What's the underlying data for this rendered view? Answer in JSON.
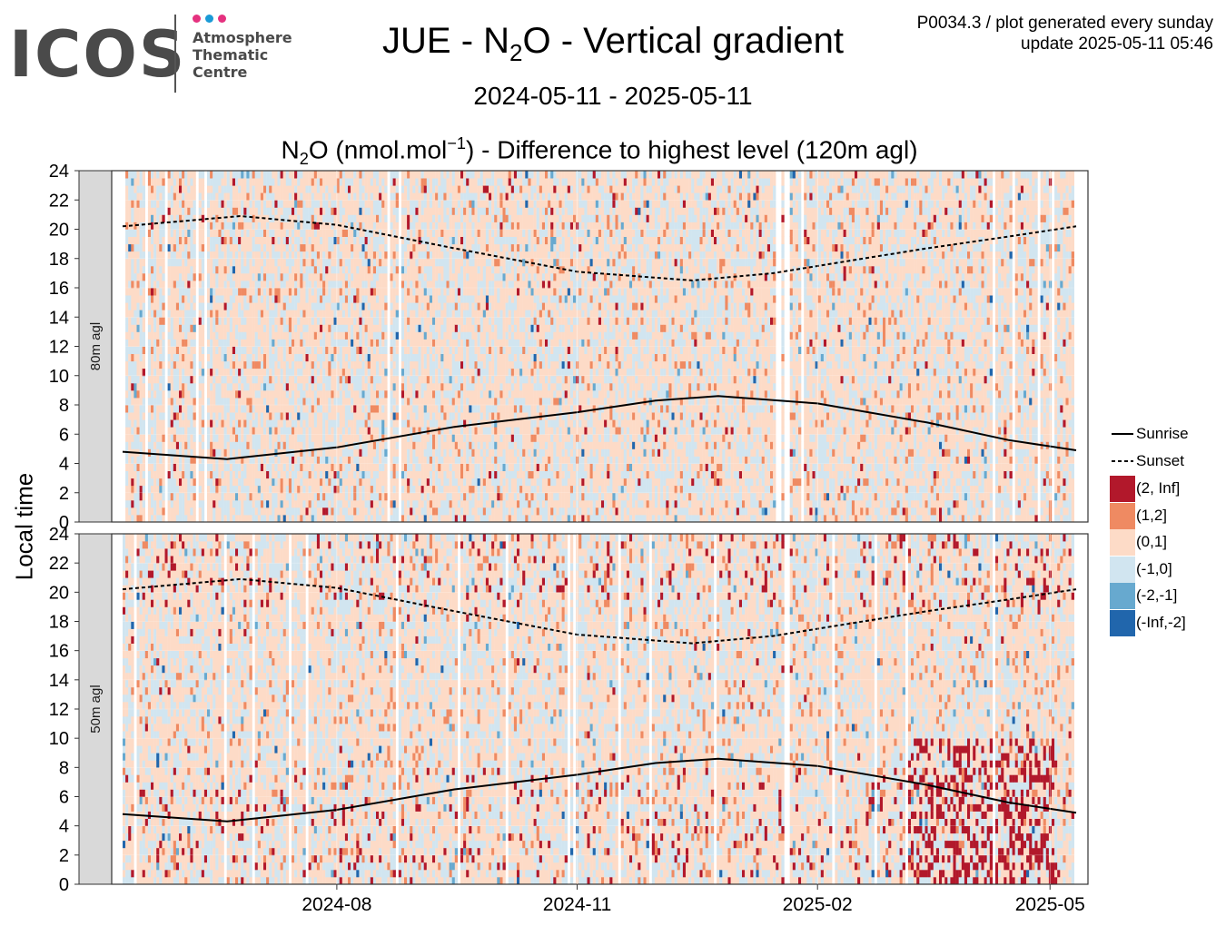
{
  "logo": {
    "name": "ICOS",
    "subtitle_lines": [
      "Atmosphere",
      "Thematic",
      "Centre"
    ],
    "dot_colors": [
      "#e5317f",
      "#1a9ad6",
      "#e5317f"
    ]
  },
  "header": {
    "title_pre": "JUE - N",
    "title_sub": "2",
    "title_post": "O - Vertical gradient",
    "date_range": "2024-05-11 - 2025-05-11",
    "subtitle_pre": "N",
    "subtitle_sub": "2",
    "subtitle_mid": "O (nmol.mol",
    "subtitle_sup": "−1",
    "subtitle_post": ") - Difference to highest level (120m agl)",
    "info_line1": "P0034.3 / plot generated every sunday",
    "info_line2": "update  2025-05-11 05:46"
  },
  "chart_data": {
    "type": "heatmap",
    "x_axis": {
      "ticks": [
        "2024-08",
        "2024-11",
        "2025-02",
        "2025-05"
      ],
      "range": [
        "2024-05-11",
        "2025-05-11"
      ]
    },
    "y_axis": {
      "label": "Local time",
      "ticks": [
        0,
        2,
        4,
        6,
        8,
        10,
        12,
        14,
        16,
        18,
        20,
        22,
        24
      ],
      "range": [
        0,
        24
      ]
    },
    "panels": [
      {
        "label": "80m agl",
        "sunrise": [
          {
            "date": "2024-05-11",
            "hour": 4.8
          },
          {
            "date": "2024-06-20",
            "hour": 4.3
          },
          {
            "date": "2024-08-01",
            "hour": 5.1
          },
          {
            "date": "2024-09-15",
            "hour": 6.5
          },
          {
            "date": "2024-11-01",
            "hour": 7.5
          },
          {
            "date": "2024-12-01",
            "hour": 8.3
          },
          {
            "date": "2024-12-25",
            "hour": 8.6
          },
          {
            "date": "2025-02-01",
            "hour": 8.1
          },
          {
            "date": "2025-03-15",
            "hour": 6.8
          },
          {
            "date": "2025-04-15",
            "hour": 5.6
          },
          {
            "date": "2025-05-11",
            "hour": 4.9
          }
        ],
        "sunset": [
          {
            "date": "2024-05-11",
            "hour": 20.2
          },
          {
            "date": "2024-06-25",
            "hour": 20.9
          },
          {
            "date": "2024-08-01",
            "hour": 20.3
          },
          {
            "date": "2024-09-15",
            "hour": 18.7
          },
          {
            "date": "2024-11-01",
            "hour": 17.1
          },
          {
            "date": "2024-12-15",
            "hour": 16.5
          },
          {
            "date": "2025-01-15",
            "hour": 17.0
          },
          {
            "date": "2025-02-15",
            "hour": 17.9
          },
          {
            "date": "2025-03-15",
            "hour": 18.7
          },
          {
            "date": "2025-04-15",
            "hour": 19.5
          },
          {
            "date": "2025-05-11",
            "hour": 20.2
          }
        ]
      },
      {
        "label": "50m agl",
        "sunrise": [
          {
            "date": "2024-05-11",
            "hour": 4.8
          },
          {
            "date": "2024-06-20",
            "hour": 4.3
          },
          {
            "date": "2024-08-01",
            "hour": 5.1
          },
          {
            "date": "2024-09-15",
            "hour": 6.5
          },
          {
            "date": "2024-11-01",
            "hour": 7.5
          },
          {
            "date": "2024-12-01",
            "hour": 8.3
          },
          {
            "date": "2024-12-25",
            "hour": 8.6
          },
          {
            "date": "2025-02-01",
            "hour": 8.1
          },
          {
            "date": "2025-03-15",
            "hour": 6.8
          },
          {
            "date": "2025-04-15",
            "hour": 5.6
          },
          {
            "date": "2025-05-11",
            "hour": 4.9
          }
        ],
        "sunset": [
          {
            "date": "2024-05-11",
            "hour": 20.2
          },
          {
            "date": "2024-06-25",
            "hour": 20.9
          },
          {
            "date": "2024-08-01",
            "hour": 20.3
          },
          {
            "date": "2024-09-15",
            "hour": 18.7
          },
          {
            "date": "2024-11-01",
            "hour": 17.1
          },
          {
            "date": "2024-12-15",
            "hour": 16.5
          },
          {
            "date": "2025-01-15",
            "hour": 17.0
          },
          {
            "date": "2025-02-15",
            "hour": 17.9
          },
          {
            "date": "2025-03-15",
            "hour": 18.7
          },
          {
            "date": "2025-04-15",
            "hour": 19.5
          },
          {
            "date": "2025-05-11",
            "hour": 20.2
          }
        ]
      }
    ],
    "legend": {
      "lines": [
        {
          "label": "Sunrise",
          "style": "solid"
        },
        {
          "label": "Sunset",
          "style": "dashed"
        }
      ],
      "bins": [
        {
          "label": "(2, Inf]",
          "color": "#b2182b"
        },
        {
          "label": "(1,2]",
          "color": "#ef8a62"
        },
        {
          "label": "(0,1]",
          "color": "#fddbc7"
        },
        {
          "label": "(-1,0]",
          "color": "#d1e5f0"
        },
        {
          "label": "(-2,-1]",
          "color": "#67a9cf"
        },
        {
          "label": "(-Inf,-2]",
          "color": "#2166ac"
        }
      ]
    }
  }
}
